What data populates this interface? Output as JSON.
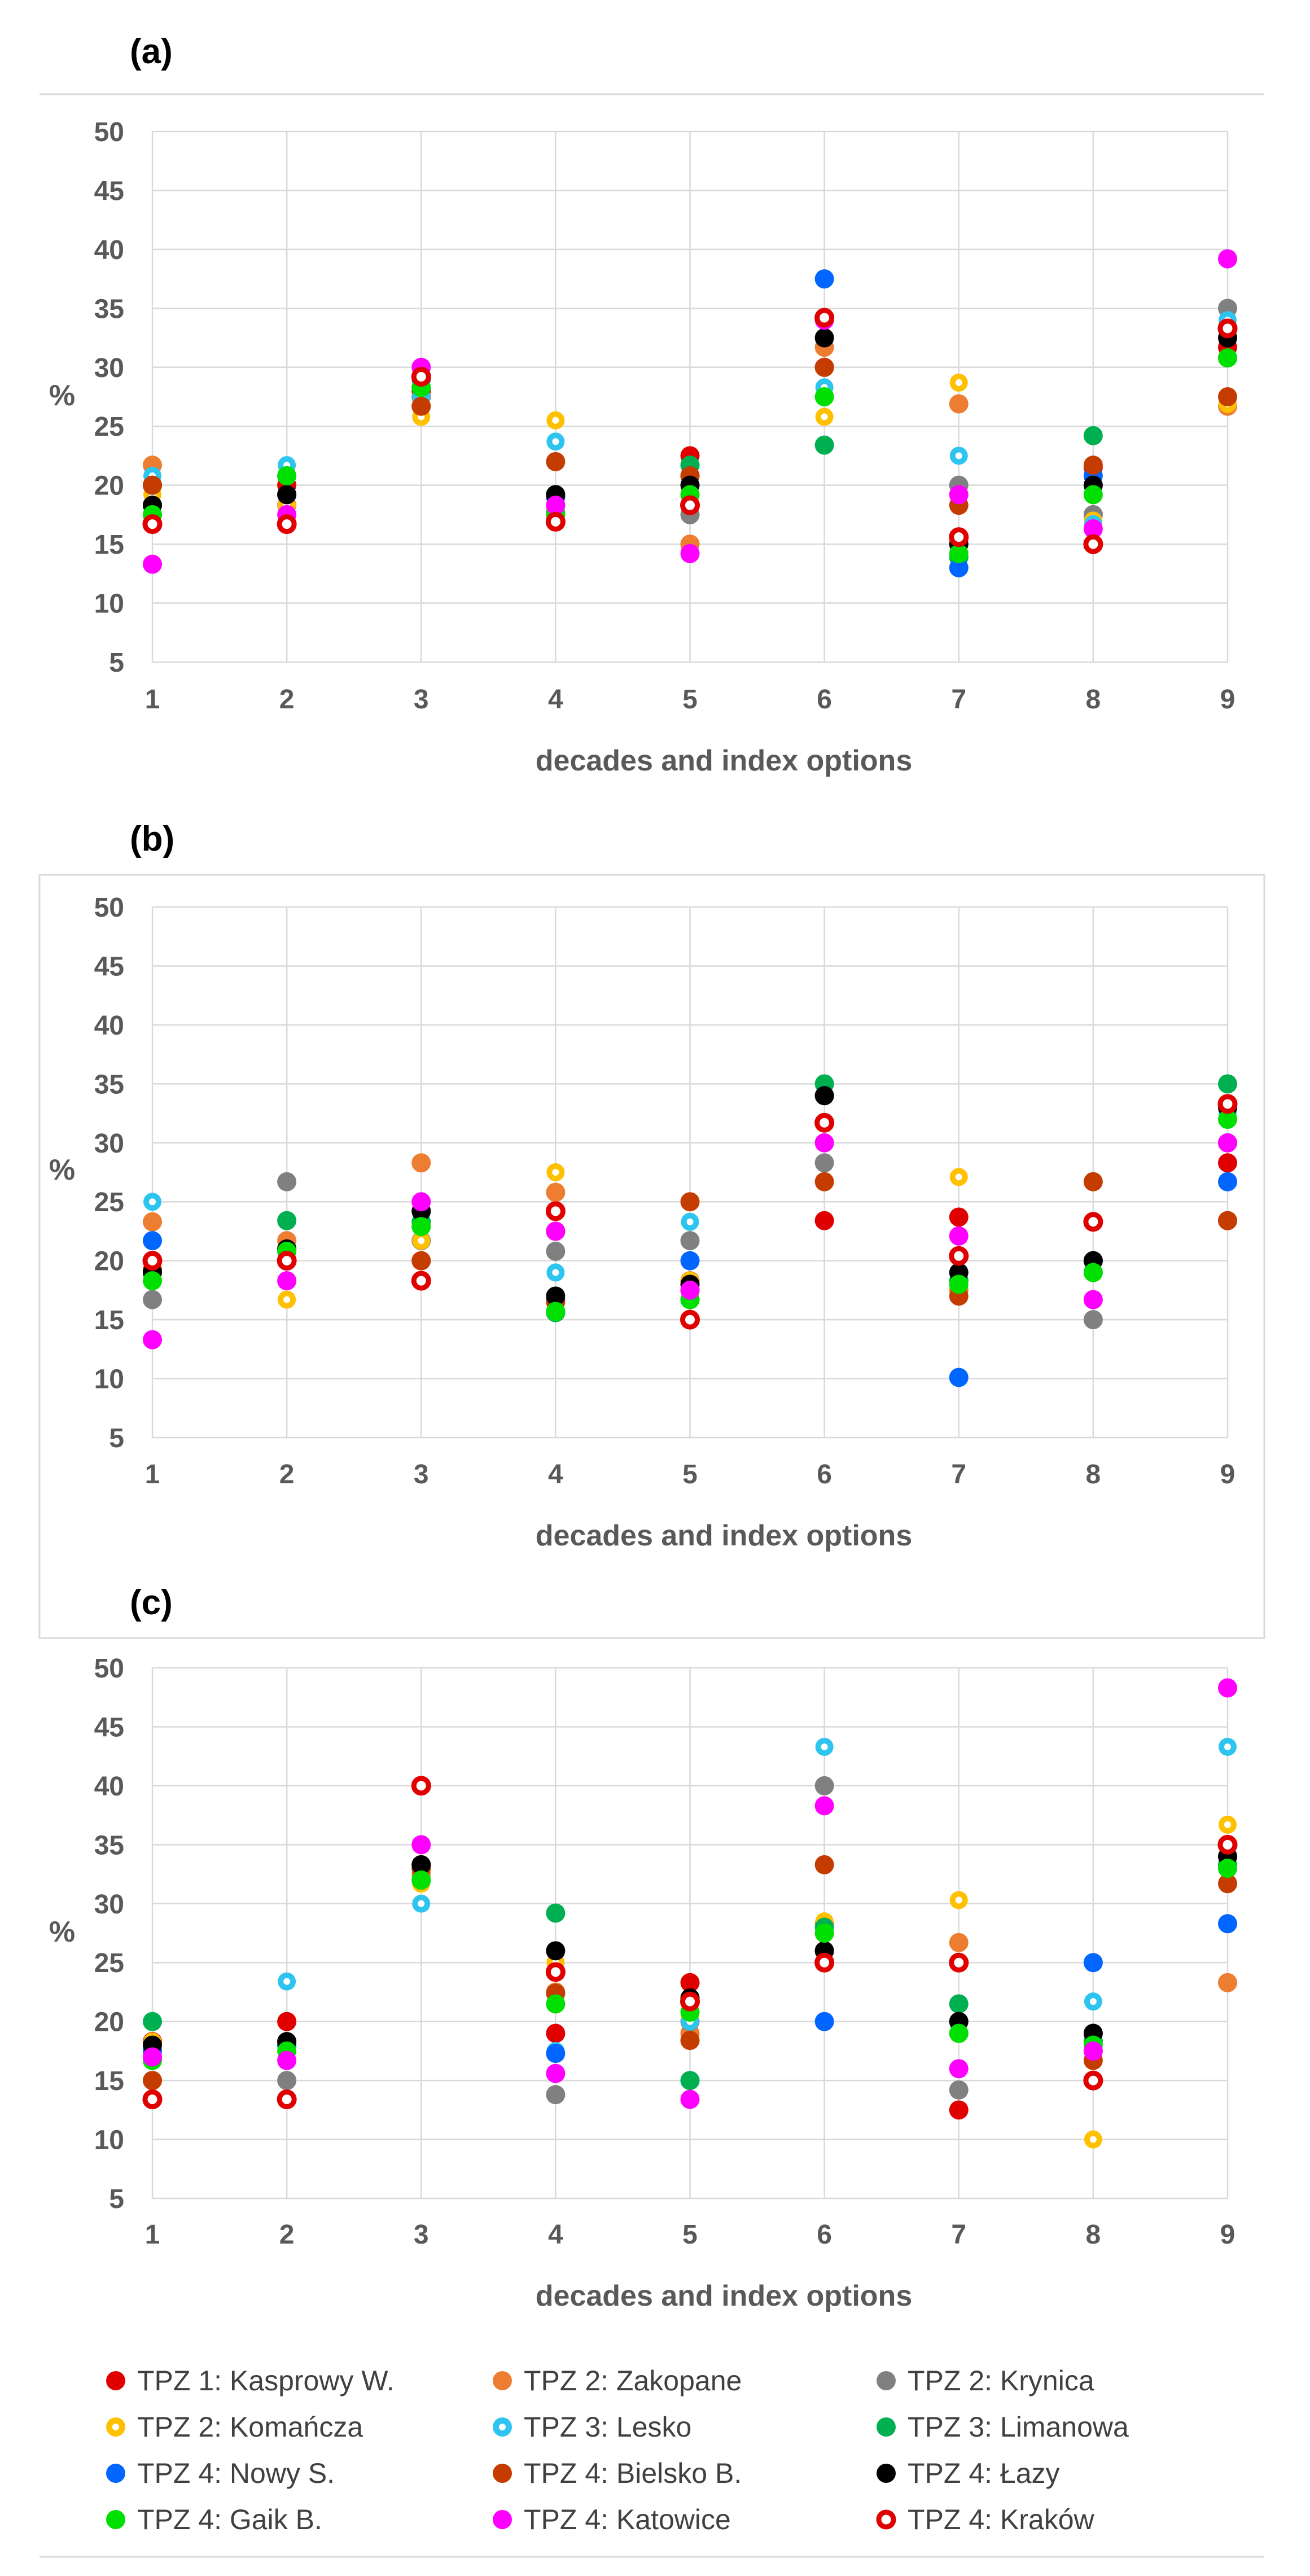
{
  "chart_data": [
    {
      "type": "scatter",
      "panel": "(a)",
      "xlabel": "decades and index options",
      "ylabel": "%",
      "xlim": [
        1,
        9
      ],
      "ylim": [
        5,
        50
      ],
      "x_ticks": [
        1,
        2,
        3,
        4,
        5,
        6,
        7,
        8,
        9
      ],
      "y_ticks": [
        5,
        10,
        15,
        20,
        25,
        30,
        35,
        40,
        45,
        50
      ],
      "grid": true,
      "x": [
        1,
        2,
        3,
        4,
        5,
        6,
        7,
        8,
        9
      ],
      "series": [
        {
          "name": "TPZ 1: Kasprowy W.",
          "values": [
            20,
            20,
            28,
            19,
            22.5,
            30,
            15.5,
            21.5,
            31.7
          ]
        },
        {
          "name": "TPZ 2: Zakopane",
          "values": [
            21.7,
            18.3,
            26.7,
            18.3,
            15,
            31.7,
            26.9,
            17.5,
            26.7
          ]
        },
        {
          "name": "TPZ 2: Krynica",
          "values": [
            17.5,
            19.2,
            27.5,
            17.7,
            17.5,
            30,
            20,
            17.5,
            35
          ]
        },
        {
          "name": "TPZ 2: Komańcza",
          "values": [
            19.2,
            18.3,
            25.8,
            25.5,
            18.3,
            25.8,
            28.7,
            17,
            26.9
          ]
        },
        {
          "name": "TPZ 3: Lesko",
          "values": [
            20.8,
            21.7,
            27.5,
            23.7,
            19.2,
            28.3,
            22.5,
            16.7,
            34
          ]
        },
        {
          "name": "TPZ 3: Limanowa",
          "values": [
            20,
            20.8,
            29.2,
            19.2,
            21.7,
            23.4,
            13.9,
            24.2,
            30.8
          ]
        },
        {
          "name": "TPZ 4: Nowy S.",
          "values": [
            18.3,
            19.2,
            29,
            19,
            20.8,
            37.5,
            13,
            20.8,
            33.3
          ]
        },
        {
          "name": "TPZ 4: Bielsko B.",
          "values": [
            20,
            19.2,
            26.7,
            22,
            20.8,
            30,
            18.3,
            21.7,
            27.5
          ]
        },
        {
          "name": "TPZ 4: Łazy",
          "values": [
            18.3,
            19.2,
            28.3,
            19.2,
            20,
            32.5,
            15,
            20,
            32.5
          ]
        },
        {
          "name": "TPZ 4: Gaik B.",
          "values": [
            17.5,
            20.8,
            28.3,
            17.5,
            19.2,
            27.5,
            14.2,
            19.2,
            30.8
          ]
        },
        {
          "name": "TPZ 4: Katowice",
          "values": [
            13.3,
            17.5,
            30,
            18.3,
            14.2,
            34,
            19.2,
            16.3,
            39.2
          ]
        },
        {
          "name": "TPZ 4: Kraków",
          "values": [
            16.7,
            16.7,
            29.2,
            16.9,
            18.3,
            34.2,
            15.6,
            15,
            33.3
          ]
        }
      ]
    },
    {
      "type": "scatter",
      "panel": "(b)",
      "xlabel": "decades and index options",
      "ylabel": "%",
      "xlim": [
        1,
        9
      ],
      "ylim": [
        5,
        50
      ],
      "x_ticks": [
        1,
        2,
        3,
        4,
        5,
        6,
        7,
        8,
        9
      ],
      "y_ticks": [
        5,
        10,
        15,
        20,
        25,
        30,
        35,
        40,
        45,
        50
      ],
      "grid": true,
      "x": [
        1,
        2,
        3,
        4,
        5,
        6,
        7,
        8,
        9
      ],
      "series": [
        {
          "name": "TPZ 1: Kasprowy W.",
          "values": [
            20,
            21,
            20,
            22.5,
            17.5,
            23.4,
            23.7,
            20,
            28.3
          ]
        },
        {
          "name": "TPZ 2: Zakopane",
          "values": [
            23.3,
            21.7,
            28.3,
            25.8,
            18.3,
            31.7,
            17.5,
            20,
            23.4
          ]
        },
        {
          "name": "TPZ 2: Krynica",
          "values": [
            16.7,
            26.7,
            21.7,
            20.8,
            21.7,
            28.3,
            18.3,
            15,
            30
          ]
        },
        {
          "name": "TPZ 2: Komańcza",
          "values": [
            18.3,
            16.7,
            21.7,
            27.5,
            18.3,
            31.7,
            27.1,
            20,
            33.3
          ]
        },
        {
          "name": "TPZ 3: Lesko",
          "values": [
            25,
            20.8,
            23.3,
            19,
            23.3,
            31.7,
            18.3,
            20,
            32.5
          ]
        },
        {
          "name": "TPZ 3: Limanowa",
          "values": [
            19.2,
            23.4,
            23.3,
            15.6,
            16.7,
            35,
            18.3,
            19,
            35
          ]
        },
        {
          "name": "TPZ 4: Nowy S.",
          "values": [
            21.7,
            20.8,
            24.2,
            16.7,
            20,
            34,
            10.1,
            20,
            26.7
          ]
        },
        {
          "name": "TPZ 4: Bielsko B.",
          "values": [
            19.2,
            20,
            20,
            16.5,
            25,
            26.7,
            17,
            26.7,
            23.4
          ]
        },
        {
          "name": "TPZ 4: Łazy",
          "values": [
            19,
            21,
            24.2,
            17,
            18,
            34,
            19,
            20,
            33
          ]
        },
        {
          "name": "TPZ 4: Gaik B.",
          "values": [
            18.3,
            20.8,
            22.9,
            15.7,
            16.7,
            31.7,
            18,
            19,
            32
          ]
        },
        {
          "name": "TPZ 4: Katowice",
          "values": [
            13.3,
            18.3,
            25,
            22.5,
            17.5,
            30,
            22.1,
            16.7,
            30
          ]
        },
        {
          "name": "TPZ 4: Kraków",
          "values": [
            20,
            20,
            18.3,
            24.2,
            15,
            31.7,
            20.4,
            23.3,
            33.3
          ]
        }
      ]
    },
    {
      "type": "scatter",
      "panel": "(c)",
      "xlabel": "decades and index options",
      "ylabel": "%",
      "xlim": [
        1,
        9
      ],
      "ylim": [
        5,
        50
      ],
      "x_ticks": [
        1,
        2,
        3,
        4,
        5,
        6,
        7,
        8,
        9
      ],
      "y_ticks": [
        5,
        10,
        15,
        20,
        25,
        30,
        35,
        40,
        45,
        50
      ],
      "grid": true,
      "x": [
        1,
        2,
        3,
        4,
        5,
        6,
        7,
        8,
        9
      ],
      "series": [
        {
          "name": "TPZ 1: Kasprowy W.",
          "values": [
            18.3,
            20,
            33.3,
            19,
            23.3,
            26,
            12.5,
            19,
            35
          ]
        },
        {
          "name": "TPZ 2: Zakopane",
          "values": [
            17.5,
            18,
            32.5,
            22.5,
            19,
            28.3,
            26.7,
            17.5,
            23.3
          ]
        },
        {
          "name": "TPZ 2: Krynica",
          "values": [
            15,
            15,
            32,
            13.8,
            20,
            40,
            14.2,
            18.3,
            34
          ]
        },
        {
          "name": "TPZ 2: Komańcza",
          "values": [
            18.3,
            17.5,
            31.7,
            25,
            20.5,
            28.5,
            30.3,
            10,
            36.7
          ]
        },
        {
          "name": "TPZ 3: Lesko",
          "values": [
            16.7,
            23.4,
            30,
            17.5,
            20,
            43.3,
            20,
            21.7,
            43.3
          ]
        },
        {
          "name": "TPZ 3: Limanowa",
          "values": [
            20,
            18,
            32,
            29.2,
            15,
            28,
            21.5,
            18.3,
            33.3
          ]
        },
        {
          "name": "TPZ 4: Nowy S.",
          "values": [
            17.5,
            18,
            33,
            17.3,
            21.7,
            20,
            20,
            25,
            28.3
          ]
        },
        {
          "name": "TPZ 4: Bielsko B.",
          "values": [
            15,
            18.3,
            33,
            22.4,
            18.4,
            33.3,
            19,
            16.7,
            31.7
          ]
        },
        {
          "name": "TPZ 4: Łazy",
          "values": [
            18,
            18.3,
            33.3,
            26,
            22,
            26,
            20,
            19,
            34
          ]
        },
        {
          "name": "TPZ 4: Gaik B.",
          "values": [
            16.7,
            17.5,
            32,
            21.5,
            20.8,
            27.5,
            19,
            18,
            33
          ]
        },
        {
          "name": "TPZ 4: Katowice",
          "values": [
            17,
            16.7,
            35,
            15.6,
            13.4,
            38.3,
            16,
            17.5,
            48.3
          ]
        },
        {
          "name": "TPZ 4: Kraków",
          "values": [
            13.4,
            13.4,
            40,
            24.2,
            21.7,
            25,
            25,
            15,
            35
          ]
        }
      ]
    }
  ],
  "series_styles": [
    {
      "name": "TPZ 1: Kasprowy W.",
      "color": "#e00000",
      "marker": "filled"
    },
    {
      "name": "TPZ 2: Zakopane",
      "color": "#ed7d31",
      "marker": "filled"
    },
    {
      "name": "TPZ 2: Krynica",
      "color": "#808080",
      "marker": "filled"
    },
    {
      "name": "TPZ 2: Komańcza",
      "color": "#ffc000",
      "marker": "ring-white-center"
    },
    {
      "name": "TPZ 3: Lesko",
      "color": "#2ec4f0",
      "marker": "ring-white-center"
    },
    {
      "name": "TPZ 3: Limanowa",
      "color": "#00b050",
      "marker": "filled"
    },
    {
      "name": "TPZ 4: Nowy S.",
      "color": "#0066ff",
      "marker": "filled"
    },
    {
      "name": "TPZ 4: Bielsko B.",
      "color": "#c43c00",
      "marker": "filled"
    },
    {
      "name": "TPZ 4: Łazy",
      "color": "#000000",
      "marker": "filled"
    },
    {
      "name": "TPZ 4: Gaik B.",
      "color": "#00e000",
      "marker": "filled"
    },
    {
      "name": "TPZ 4: Katowice",
      "color": "#ff00ff",
      "marker": "filled"
    },
    {
      "name": "TPZ 4: Kraków",
      "color": "#e00000",
      "marker": "hollow"
    }
  ],
  "colors": {
    "grid": "#d9d9d9",
    "axis_text": "#595959",
    "legend_text": "#404040",
    "separator": "#d9d9d9"
  }
}
